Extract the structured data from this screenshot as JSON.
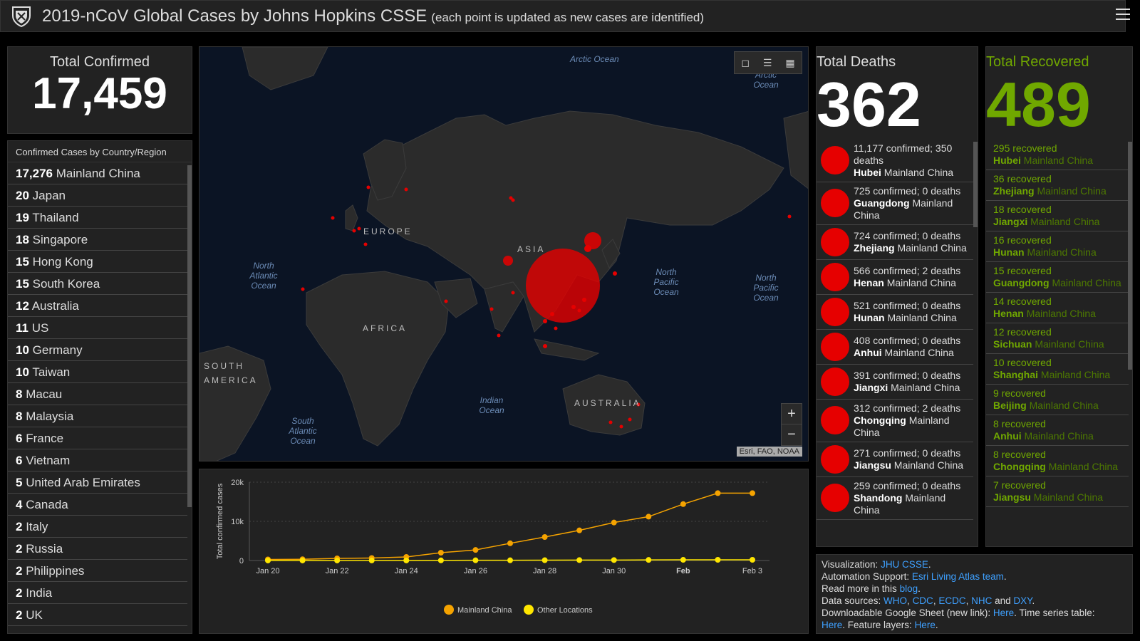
{
  "header": {
    "title": "2019-nCoV Global Cases by Johns Hopkins CSSE",
    "subtitle": "(each point is updated as new cases are identified)"
  },
  "total_confirmed": {
    "label": "Total Confirmed",
    "value": "17,459"
  },
  "country_list": {
    "title": "Confirmed Cases by Country/Region",
    "rows": [
      {
        "count": "17,276",
        "name": "Mainland China"
      },
      {
        "count": "20",
        "name": "Japan"
      },
      {
        "count": "19",
        "name": "Thailand"
      },
      {
        "count": "18",
        "name": "Singapore"
      },
      {
        "count": "15",
        "name": "Hong Kong"
      },
      {
        "count": "15",
        "name": "South Korea"
      },
      {
        "count": "12",
        "name": "Australia"
      },
      {
        "count": "11",
        "name": "US"
      },
      {
        "count": "10",
        "name": "Germany"
      },
      {
        "count": "10",
        "name": "Taiwan"
      },
      {
        "count": "8",
        "name": "Macau"
      },
      {
        "count": "8",
        "name": "Malaysia"
      },
      {
        "count": "6",
        "name": "France"
      },
      {
        "count": "6",
        "name": "Vietnam"
      },
      {
        "count": "5",
        "name": "United Arab Emirates"
      },
      {
        "count": "4",
        "name": "Canada"
      },
      {
        "count": "2",
        "name": "Italy"
      },
      {
        "count": "2",
        "name": "Russia"
      },
      {
        "count": "2",
        "name": "Philippines"
      },
      {
        "count": "2",
        "name": "India"
      },
      {
        "count": "2",
        "name": "UK"
      }
    ]
  },
  "map": {
    "ocean_labels": [
      "Arctic Ocean",
      "Arctic Ocean",
      "North Atlantic Ocean",
      "North Pacific Ocean",
      "North Pacific Ocean",
      "Indian Ocean",
      "South Atlantic Ocean"
    ],
    "continent_labels": [
      "EUROPE",
      "ASIA",
      "AFRICA",
      "SOUTH AMERICA",
      "AUSTRALIA"
    ],
    "attribution": "Esri, FAO, NOAA",
    "zoom_in": "+",
    "zoom_out": "−",
    "colors": {
      "ocean": "#0b1424",
      "land": "#2b2b2b",
      "case": "#e60000"
    }
  },
  "total_deaths": {
    "label": "Total Deaths",
    "value": "362",
    "rows": [
      {
        "confirmed": "11,177",
        "deaths": "350",
        "province": "Hubei",
        "region": "Mainland China"
      },
      {
        "confirmed": "725",
        "deaths": "0",
        "province": "Guangdong",
        "region": "Mainland China"
      },
      {
        "confirmed": "724",
        "deaths": "0",
        "province": "Zhejiang",
        "region": "Mainland China"
      },
      {
        "confirmed": "566",
        "deaths": "2",
        "province": "Henan",
        "region": "Mainland China"
      },
      {
        "confirmed": "521",
        "deaths": "0",
        "province": "Hunan",
        "region": "Mainland China"
      },
      {
        "confirmed": "408",
        "deaths": "0",
        "province": "Anhui",
        "region": "Mainland China"
      },
      {
        "confirmed": "391",
        "deaths": "0",
        "province": "Jiangxi",
        "region": "Mainland China"
      },
      {
        "confirmed": "312",
        "deaths": "2",
        "province": "Chongqing",
        "region": "Mainland China"
      },
      {
        "confirmed": "271",
        "deaths": "0",
        "province": "Jiangsu",
        "region": "Mainland China"
      },
      {
        "confirmed": "259",
        "deaths": "0",
        "province": "Shandong",
        "region": "Mainland China"
      }
    ],
    "confirmed_word": "confirmed;",
    "deaths_word": "deaths"
  },
  "total_recovered": {
    "label": "Total Recovered",
    "value": "489",
    "word": "recovered",
    "rows": [
      {
        "count": "295",
        "province": "Hubei",
        "region": "Mainland China"
      },
      {
        "count": "36",
        "province": "Zhejiang",
        "region": "Mainland China"
      },
      {
        "count": "18",
        "province": "Jiangxi",
        "region": "Mainland China"
      },
      {
        "count": "16",
        "province": "Hunan",
        "region": "Mainland China"
      },
      {
        "count": "15",
        "province": "Guangdong",
        "region": "Mainland China"
      },
      {
        "count": "14",
        "province": "Henan",
        "region": "Mainland China"
      },
      {
        "count": "12",
        "province": "Sichuan",
        "region": "Mainland China"
      },
      {
        "count": "10",
        "province": "Shanghai",
        "region": "Mainland China"
      },
      {
        "count": "9",
        "province": "Beijing",
        "region": "Mainland China"
      },
      {
        "count": "8",
        "province": "Anhui",
        "region": "Mainland China"
      },
      {
        "count": "8",
        "province": "Chongqing",
        "region": "Mainland China"
      },
      {
        "count": "7",
        "province": "Jiangsu",
        "region": "Mainland China"
      }
    ]
  },
  "info": {
    "l1_text": "Visualization: ",
    "l1_link": "JHU CSSE",
    "l1_end": ".",
    "l2_text": "Automation Support: ",
    "l2_link": "Esri Living Atlas team",
    "l2_end": ".",
    "l3_text": "Read more in this ",
    "l3_link": "blog",
    "l3_end": ".",
    "l4_text": "Data sources: ",
    "l4_links": [
      "WHO",
      "CDC",
      "ECDC",
      "NHC",
      "DXY"
    ],
    "l4_and": "and",
    "l5_text": "Downloadable Google Sheet (new link): ",
    "l5_link": "Here",
    "l5_mid": ". Time series table:",
    "l6_link": "Here",
    "l6_mid": ". Feature layers: ",
    "l6_link2": "Here",
    "l6_end": "."
  },
  "chart_data": {
    "type": "line",
    "ylabel": "Total confirmed cases",
    "x": [
      "Jan 20",
      "Jan 21",
      "Jan 22",
      "Jan 23",
      "Jan 24",
      "Jan 25",
      "Jan 26",
      "Jan 27",
      "Jan 28",
      "Jan 29",
      "Jan 30",
      "Jan 31",
      "Feb 1",
      "Feb 2",
      "Feb 3"
    ],
    "x_tick_labels": [
      "Jan 20",
      "Jan 22",
      "Jan 24",
      "Jan 26",
      "Jan 28",
      "Jan 30",
      "Feb",
      "Feb 3"
    ],
    "ylim": [
      0,
      20000
    ],
    "y_tick_labels": [
      "0",
      "10k",
      "20k"
    ],
    "series": [
      {
        "name": "Mainland China",
        "color": "#f5a300",
        "values": [
          278,
          326,
          547,
          639,
          916,
          2000,
          2700,
          4400,
          6000,
          7700,
          9700,
          11200,
          14400,
          17200,
          17200
        ]
      },
      {
        "name": "Other Locations",
        "color": "#ffe600",
        "values": [
          4,
          6,
          8,
          14,
          25,
          40,
          57,
          64,
          87,
          105,
          118,
          153,
          173,
          183,
          183
        ]
      }
    ],
    "legend": "bottom",
    "grid": true
  }
}
